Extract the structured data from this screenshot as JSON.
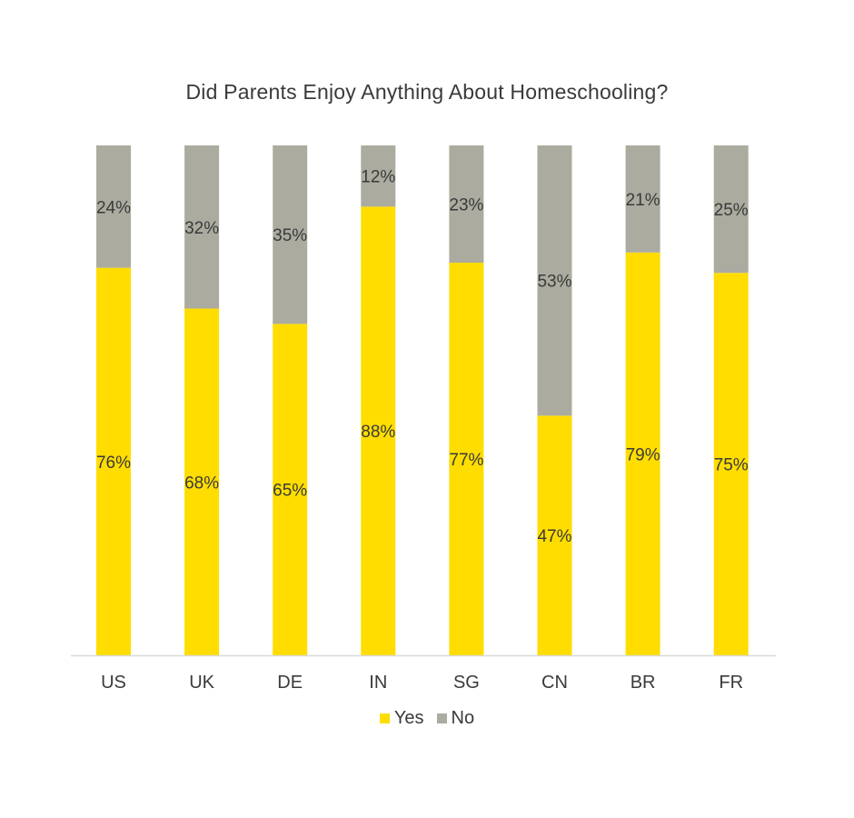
{
  "chart_data": {
    "type": "bar",
    "stacked": true,
    "title": "Did Parents Enjoy Anything About Homeschooling?",
    "categories": [
      "US",
      "UK",
      "DE",
      "IN",
      "SG",
      "CN",
      "BR",
      "FR"
    ],
    "series": [
      {
        "name": "Yes",
        "color": "#FFDD00",
        "values": [
          76,
          68,
          65,
          88,
          77,
          47,
          79,
          75
        ],
        "labels": [
          "76%",
          "68%",
          "65%",
          "88%",
          "77%",
          "47%",
          "79%",
          "75%"
        ]
      },
      {
        "name": "No",
        "color": "#ABABA0",
        "values": [
          24,
          32,
          35,
          12,
          23,
          53,
          21,
          25
        ],
        "labels": [
          "24%",
          "32%",
          "35%",
          "12%",
          "23%",
          "53%",
          "21%",
          "25%"
        ]
      }
    ],
    "ylim": [
      0,
      100
    ],
    "grid": false,
    "legend_position": "bottom"
  }
}
